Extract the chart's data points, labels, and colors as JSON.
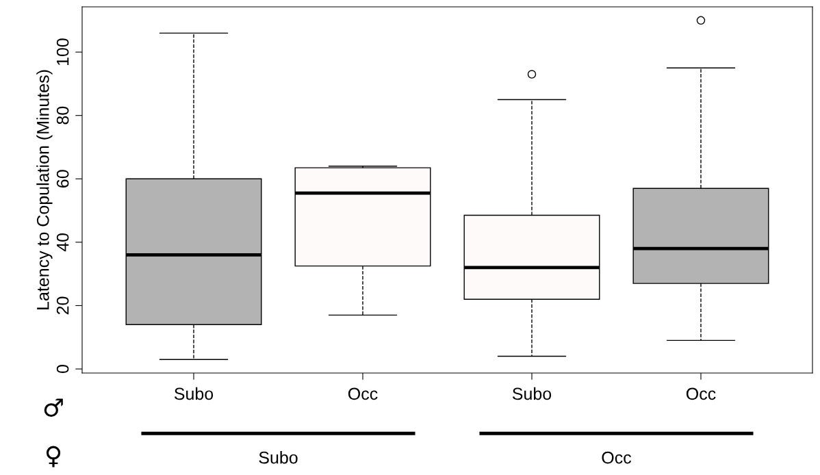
{
  "chart_data": {
    "type": "box",
    "ylabel": "Latency to Copulation (Minutes)",
    "categories": [
      "Subo",
      "Occ",
      "Subo",
      "Occ"
    ],
    "colors": [
      "#b3b3b3",
      "#fffafa",
      "#fffafa",
      "#b3b3b3"
    ],
    "boxes": [
      {
        "low": 3,
        "q1": 14,
        "median": 36,
        "q3": 60,
        "high": 106
      },
      {
        "low": 17,
        "q1": 32.5,
        "median": 55.5,
        "q3": 63.5,
        "high": 64
      },
      {
        "low": 4,
        "q1": 22,
        "median": 32,
        "q3": 48.5,
        "high": 85,
        "outliers": [
          93
        ]
      },
      {
        "low": 9,
        "q1": 27,
        "median": 38,
        "q3": 57,
        "high": 95,
        "outliers": [
          110
        ]
      }
    ],
    "ylim": [
      -1.28,
      114.28
    ],
    "yticks": [
      0,
      20,
      40,
      60,
      80,
      100
    ],
    "grid": false,
    "line_style": "dashed",
    "annotations": [
      "♂",
      "♀",
      "Subo",
      "Occ"
    ]
  }
}
